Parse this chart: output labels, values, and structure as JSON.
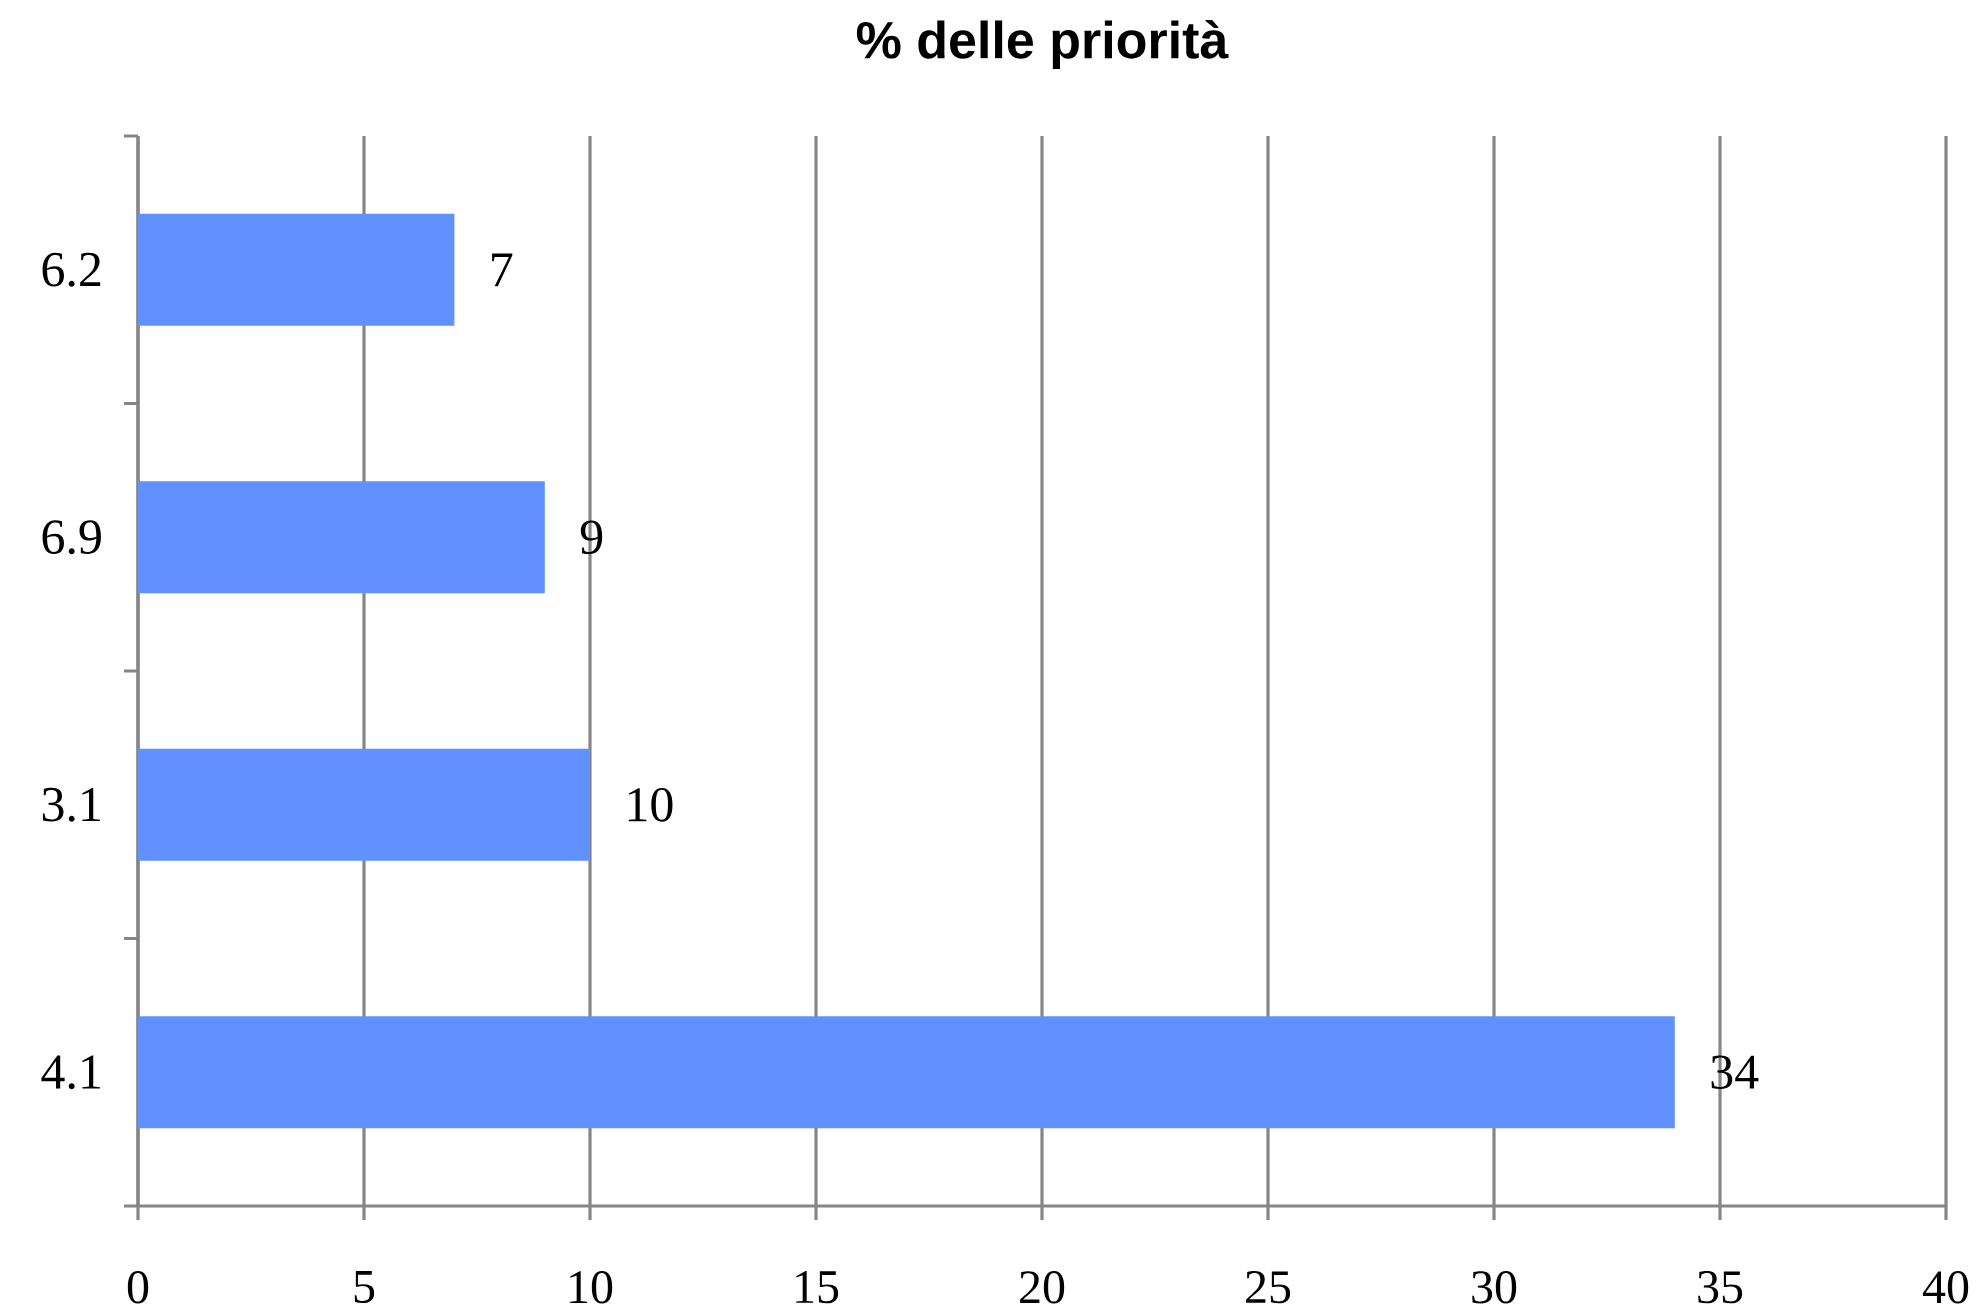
{
  "chart_data": {
    "type": "bar",
    "orientation": "horizontal",
    "title": "% delle priorità",
    "categories": [
      "6.2",
      "6.9",
      "3.1",
      "4.1"
    ],
    "values": [
      7,
      9,
      10,
      34
    ],
    "color": "#6190ff",
    "xlim": [
      0,
      40
    ],
    "xticks": [
      0,
      5,
      10,
      15,
      20,
      25,
      30,
      35,
      40
    ],
    "grid": "x",
    "data_labels": true
  }
}
